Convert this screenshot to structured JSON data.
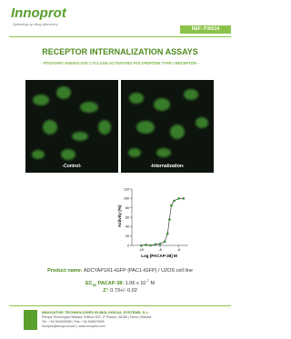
{
  "header": {
    "logo": "Innoprot",
    "tagline": "Speeding up drug discovery",
    "ref": "REF: P30214"
  },
  "title": "RECEPTOR INTERNALIZATION ASSAYS",
  "subtitle": "- PITUITARY ADENYLATE CYCLASE-ACTIVATING POLYPEPTIDE TYPE I RECEPTOR -",
  "images": [
    {
      "label": "-Control-"
    },
    {
      "label": "-Internalization-"
    }
  ],
  "assay_chart": {
    "type": "scatter",
    "x_label": "Log [PACAP-38] M",
    "y_label": "Activity (%)",
    "x": [
      -10,
      -9.5,
      -9,
      -8.5,
      -8,
      -7.5,
      -7.2,
      -7,
      -6.8,
      -6.5,
      -6,
      -5.5
    ],
    "values": [
      0,
      1,
      0,
      2,
      3,
      8,
      25,
      55,
      85,
      95,
      100,
      100
    ],
    "xlim": [
      -11,
      -5
    ],
    "ylim": [
      0,
      120
    ],
    "xticks": [
      -10,
      -8,
      -6
    ],
    "yticks": [
      0,
      20,
      40,
      60,
      80,
      100,
      120
    ],
    "color": "#3a8f3a"
  },
  "product": {
    "label": "Product name:",
    "value": "ADCYAP1R1-tGFP (PAC1-tGFP) / U2OS cell line"
  },
  "ec50": {
    "prefix": "EC",
    "sub": "50",
    "label": " PACAP-38:",
    "value": " 1.06 x 10",
    "exp": "-7",
    "unit": " M"
  },
  "z": {
    "label": "Z':",
    "value": " 0.73+/- 0.02"
  },
  "footer": {
    "company": "INNOVATIVE TECHNOLOGIES IN BIOLOGICAL SYSTEMS, S.L.",
    "address": "Parque Tecnológico Bizkaia, Edificio 502, 1ª Planta | 48160 | Derio | Bizkaia",
    "phone": "Tel.: +34 944005355 | Fax: +34 946579925",
    "web": "innoprot@innoprot.com | www.innoprot.com"
  }
}
